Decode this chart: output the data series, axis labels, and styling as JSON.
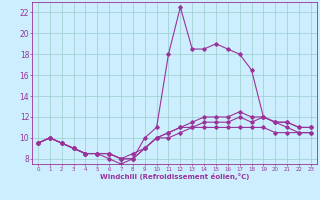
{
  "bg_color": "#cceeff",
  "line_color": "#993399",
  "grid_color": "#99cccc",
  "xlabel": "Windchill (Refroidissement éolien,°C)",
  "xlim": [
    -0.5,
    23.5
  ],
  "ylim": [
    7.5,
    23
  ],
  "yticks": [
    8,
    10,
    12,
    14,
    16,
    18,
    20,
    22
  ],
  "xticks": [
    0,
    1,
    2,
    3,
    4,
    5,
    6,
    7,
    8,
    9,
    10,
    11,
    12,
    13,
    14,
    15,
    16,
    17,
    18,
    19,
    20,
    21,
    22,
    23
  ],
  "lines": [
    {
      "x": [
        0,
        1,
        2,
        3,
        4,
        5,
        6,
        7,
        8,
        9,
        10,
        11,
        12,
        13,
        14,
        15,
        16,
        17,
        18,
        19,
        20,
        21,
        22,
        23
      ],
      "y": [
        9.5,
        10.0,
        9.5,
        9.0,
        8.5,
        8.5,
        8.0,
        7.5,
        8.0,
        10.0,
        11.0,
        18.0,
        22.5,
        18.5,
        18.5,
        19.0,
        18.5,
        18.0,
        16.5,
        12.0,
        11.5,
        11.5,
        11.0,
        11.0
      ]
    },
    {
      "x": [
        0,
        1,
        2,
        3,
        4,
        5,
        6,
        7,
        8,
        9,
        10,
        11,
        12,
        13,
        14,
        15,
        16,
        17,
        18,
        19,
        20,
        21,
        22,
        23
      ],
      "y": [
        9.5,
        10.0,
        9.5,
        9.0,
        8.5,
        8.5,
        8.5,
        8.0,
        8.0,
        9.0,
        10.0,
        10.5,
        11.0,
        11.5,
        12.0,
        12.0,
        12.0,
        12.5,
        12.0,
        12.0,
        11.5,
        11.5,
        11.0,
        11.0
      ]
    },
    {
      "x": [
        0,
        1,
        2,
        3,
        4,
        5,
        6,
        7,
        8,
        9,
        10,
        11,
        12,
        13,
        14,
        15,
        16,
        17,
        18,
        19,
        20,
        21,
        22,
        23
      ],
      "y": [
        9.5,
        10.0,
        9.5,
        9.0,
        8.5,
        8.5,
        8.5,
        8.0,
        8.0,
        9.0,
        10.0,
        10.5,
        11.0,
        11.0,
        11.5,
        11.5,
        11.5,
        12.0,
        11.5,
        12.0,
        11.5,
        11.0,
        10.5,
        10.5
      ]
    },
    {
      "x": [
        0,
        1,
        2,
        3,
        4,
        5,
        6,
        7,
        8,
        9,
        10,
        11,
        12,
        13,
        14,
        15,
        16,
        17,
        18,
        19,
        20,
        21,
        22,
        23
      ],
      "y": [
        9.5,
        10.0,
        9.5,
        9.0,
        8.5,
        8.5,
        8.5,
        8.0,
        8.5,
        9.0,
        10.0,
        10.0,
        10.5,
        11.0,
        11.0,
        11.0,
        11.0,
        11.0,
        11.0,
        11.0,
        10.5,
        10.5,
        10.5,
        10.5
      ]
    }
  ]
}
